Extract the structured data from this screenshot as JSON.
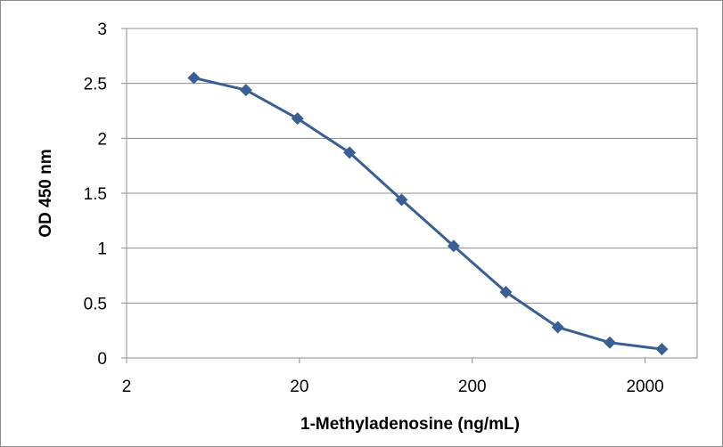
{
  "chart_data": {
    "type": "line",
    "title": "",
    "xlabel": "1-Methyladenosine (ng/mL)",
    "ylabel": "OD 450 nm",
    "xscale": "log",
    "xlim": [
      2,
      4000
    ],
    "ylim": [
      0,
      3
    ],
    "x_tick_labels": [
      "2",
      "20",
      "200",
      "2000"
    ],
    "y_tick_labels": [
      "0",
      "0.5",
      "1",
      "1.5",
      "2",
      "2.5",
      "3"
    ],
    "grid": "horizontal",
    "legend": "none",
    "marker": "diamond",
    "series": [
      {
        "color": "#3a5f94",
        "points": [
          {
            "x": 4.9,
            "y": 2.55
          },
          {
            "x": 9.8,
            "y": 2.44
          },
          {
            "x": 19.5,
            "y": 2.18
          },
          {
            "x": 39,
            "y": 1.87
          },
          {
            "x": 78,
            "y": 1.44
          },
          {
            "x": 156,
            "y": 1.02
          },
          {
            "x": 313,
            "y": 0.6
          },
          {
            "x": 625,
            "y": 0.28
          },
          {
            "x": 1250,
            "y": 0.14
          },
          {
            "x": 2500,
            "y": 0.08
          }
        ]
      }
    ]
  }
}
